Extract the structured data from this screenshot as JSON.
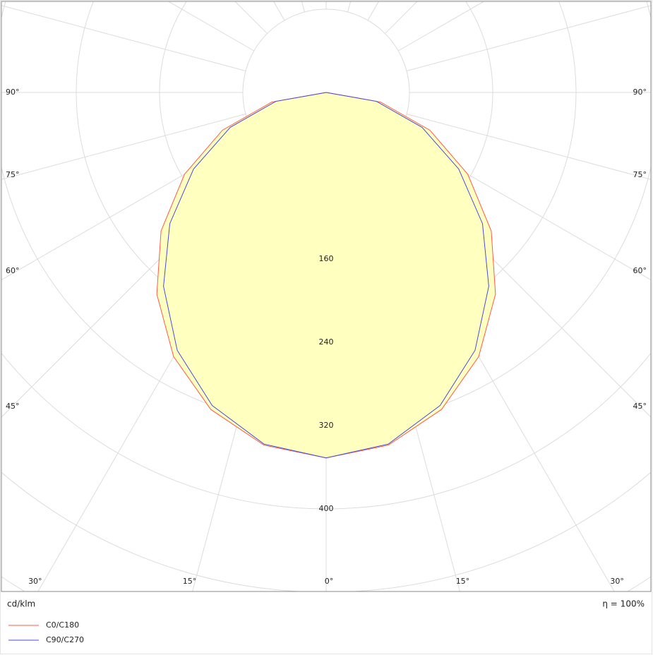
{
  "chart_data": {
    "type": "polar",
    "x": [
      0,
      10,
      20,
      30,
      40,
      50,
      60,
      70,
      80,
      90
    ],
    "series": [
      {
        "name": "C0/C180",
        "color": "#ff5a4a",
        "values": [
          351,
          344,
          324,
          293,
          253,
          207,
          157,
          106,
          53,
          0
        ]
      },
      {
        "name": "C90/C270",
        "color": "#4a4ae0",
        "values": [
          351,
          343,
          320,
          286,
          243,
          196,
          147,
          98,
          49,
          0
        ]
      }
    ],
    "rlim": [
      0,
      400
    ],
    "rticks": [
      160,
      240,
      320,
      400
    ],
    "angle_ticks": [
      {
        "value": 0,
        "label": "0°"
      },
      {
        "value": 15,
        "label": "15°"
      },
      {
        "value": 30,
        "label": "30°"
      },
      {
        "value": 45,
        "label": "45°"
      },
      {
        "value": 60,
        "label": "60°"
      },
      {
        "value": 75,
        "label": "75°"
      },
      {
        "value": 90,
        "label": "90°"
      }
    ],
    "area_color": "#ffffc0",
    "grid": true,
    "unit_label": "cd/klm",
    "efficiency_label": "η = 100%"
  }
}
